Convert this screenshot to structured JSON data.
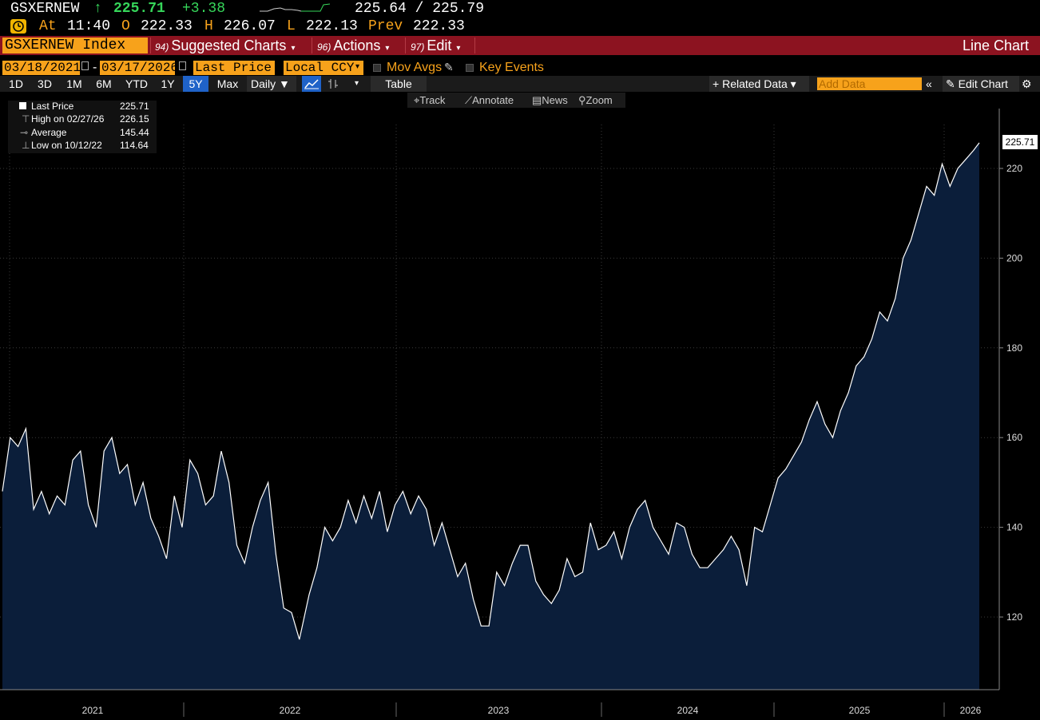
{
  "quote": {
    "ticker": "GSXERNEW",
    "arrow": "↑",
    "last": "225.71",
    "change": "+3.38",
    "bid_ask": "225.64 / 225.79",
    "at_label": "At",
    "time": "11:40",
    "open_label": "O",
    "open": "222.33",
    "high_label": "H",
    "high": "226.07",
    "low_label": "L",
    "low": "222.13",
    "prev_label": "Prev",
    "prev": "222.33"
  },
  "menubar": {
    "security": "GSXERNEW Index",
    "items": [
      {
        "num": "94)",
        "label": "Suggested Charts"
      },
      {
        "num": "96)",
        "label": "Actions"
      },
      {
        "num": "97)",
        "label": "Edit"
      }
    ],
    "chart_type": "Line Chart"
  },
  "controls": {
    "start_date": "03/18/2021",
    "date_sep": "-",
    "end_date": "03/17/2026",
    "field": "Last Price",
    "currency": "Local CCY",
    "mov_avgs": "Mov Avgs",
    "key_events": "Key Events"
  },
  "periods": [
    "1D",
    "3D",
    "1M",
    "6M",
    "YTD",
    "1Y",
    "5Y",
    "Max"
  ],
  "selected_period": "5Y",
  "frequency": "Daily",
  "table_label": "Table",
  "related_data": "Related Data",
  "add_data_placeholder": "Add Data",
  "edit_chart": "Edit Chart",
  "chart_tools": [
    "Track",
    "Annotate",
    "News",
    "Zoom"
  ],
  "legend": {
    "last_label": "Last Price",
    "last_value": "225.71",
    "high_label": "High on 02/27/26",
    "high_value": "226.15",
    "avg_label": "Average",
    "avg_value": "145.44",
    "low_label": "Low on 10/12/22",
    "low_value": "114.64"
  },
  "colors": {
    "accent": "#f7a21b",
    "menubar": "#8c1320",
    "up": "#36d65a",
    "area_fill": "#0b1e3a",
    "selected": "#1f62c8"
  },
  "chart_data": {
    "type": "area",
    "title": "",
    "xlabel": "",
    "ylabel": "",
    "ylim": [
      103,
      230
    ],
    "yticks": [
      120,
      140,
      160,
      180,
      200,
      220
    ],
    "xtick_labels": [
      "2021",
      "2022",
      "2023",
      "2024",
      "2025",
      "2026"
    ],
    "last_value_label": "225.71",
    "series": [
      {
        "x": [
          2021.21,
          2021.25,
          2021.29,
          2021.33,
          2021.37,
          2021.41,
          2021.45,
          2021.49,
          2021.53,
          2021.57,
          2021.61,
          2021.65,
          2021.69,
          2021.73,
          2021.77,
          2021.81,
          2021.85,
          2021.89,
          2021.93,
          2021.97,
          2022.01,
          2022.05,
          2022.09,
          2022.13,
          2022.17,
          2022.21,
          2022.25,
          2022.29,
          2022.33,
          2022.37,
          2022.41,
          2022.45,
          2022.49,
          2022.53,
          2022.57,
          2022.61,
          2022.65,
          2022.69,
          2022.73,
          2022.78,
          2022.82,
          2022.86,
          2022.9,
          2022.94,
          2022.98,
          2023.02,
          2023.06,
          2023.1,
          2023.14,
          2023.18,
          2023.22,
          2023.26,
          2023.3,
          2023.34,
          2023.38,
          2023.42,
          2023.46,
          2023.5,
          2023.54,
          2023.58,
          2023.62,
          2023.66,
          2023.7,
          2023.74,
          2023.78,
          2023.82,
          2023.86,
          2023.9,
          2023.94,
          2023.98,
          2024.02,
          2024.06,
          2024.1,
          2024.14,
          2024.18,
          2024.22,
          2024.26,
          2024.3,
          2024.34,
          2024.38,
          2024.42,
          2024.46,
          2024.5,
          2024.54,
          2024.58,
          2024.62,
          2024.66,
          2024.7,
          2024.74,
          2024.78,
          2024.82,
          2024.86,
          2024.9,
          2024.94,
          2024.98,
          2025.02,
          2025.06,
          2025.1,
          2025.14,
          2025.18,
          2025.22,
          2025.26,
          2025.3,
          2025.34,
          2025.38,
          2025.42,
          2025.46,
          2025.5,
          2025.54,
          2025.58,
          2025.62,
          2025.66,
          2025.7,
          2025.74,
          2025.78,
          2025.82,
          2025.86,
          2025.9,
          2025.94,
          2025.98,
          2026.02,
          2026.06,
          2026.1,
          2026.14,
          2026.18,
          2026.21
        ],
        "values": [
          148,
          160,
          158,
          162,
          144,
          148,
          143,
          147,
          145,
          155,
          157,
          145,
          140,
          157,
          160,
          152,
          154,
          145,
          150,
          142,
          138,
          133,
          147,
          140,
          155,
          152,
          145,
          147,
          157,
          150,
          136,
          132,
          140,
          146,
          150,
          134,
          122,
          121,
          115,
          125,
          131,
          140,
          137,
          140,
          146,
          141,
          147,
          142,
          148,
          139,
          145,
          148,
          143,
          147,
          144,
          136,
          141,
          135,
          129,
          132,
          124,
          118,
          118,
          130,
          127,
          132,
          136,
          136,
          128,
          125,
          123,
          126,
          133,
          129,
          130,
          141,
          135,
          136,
          139,
          133,
          140,
          144,
          146,
          140,
          137,
          134,
          141,
          140,
          134,
          131,
          131,
          133,
          135,
          138,
          135,
          127,
          140,
          139,
          145,
          151,
          153,
          156,
          159,
          164,
          168,
          163,
          160,
          166,
          170,
          176,
          178,
          182,
          188,
          186,
          191,
          200,
          204,
          210,
          216,
          214,
          221,
          216,
          220,
          222,
          224,
          225.71
        ]
      }
    ]
  }
}
